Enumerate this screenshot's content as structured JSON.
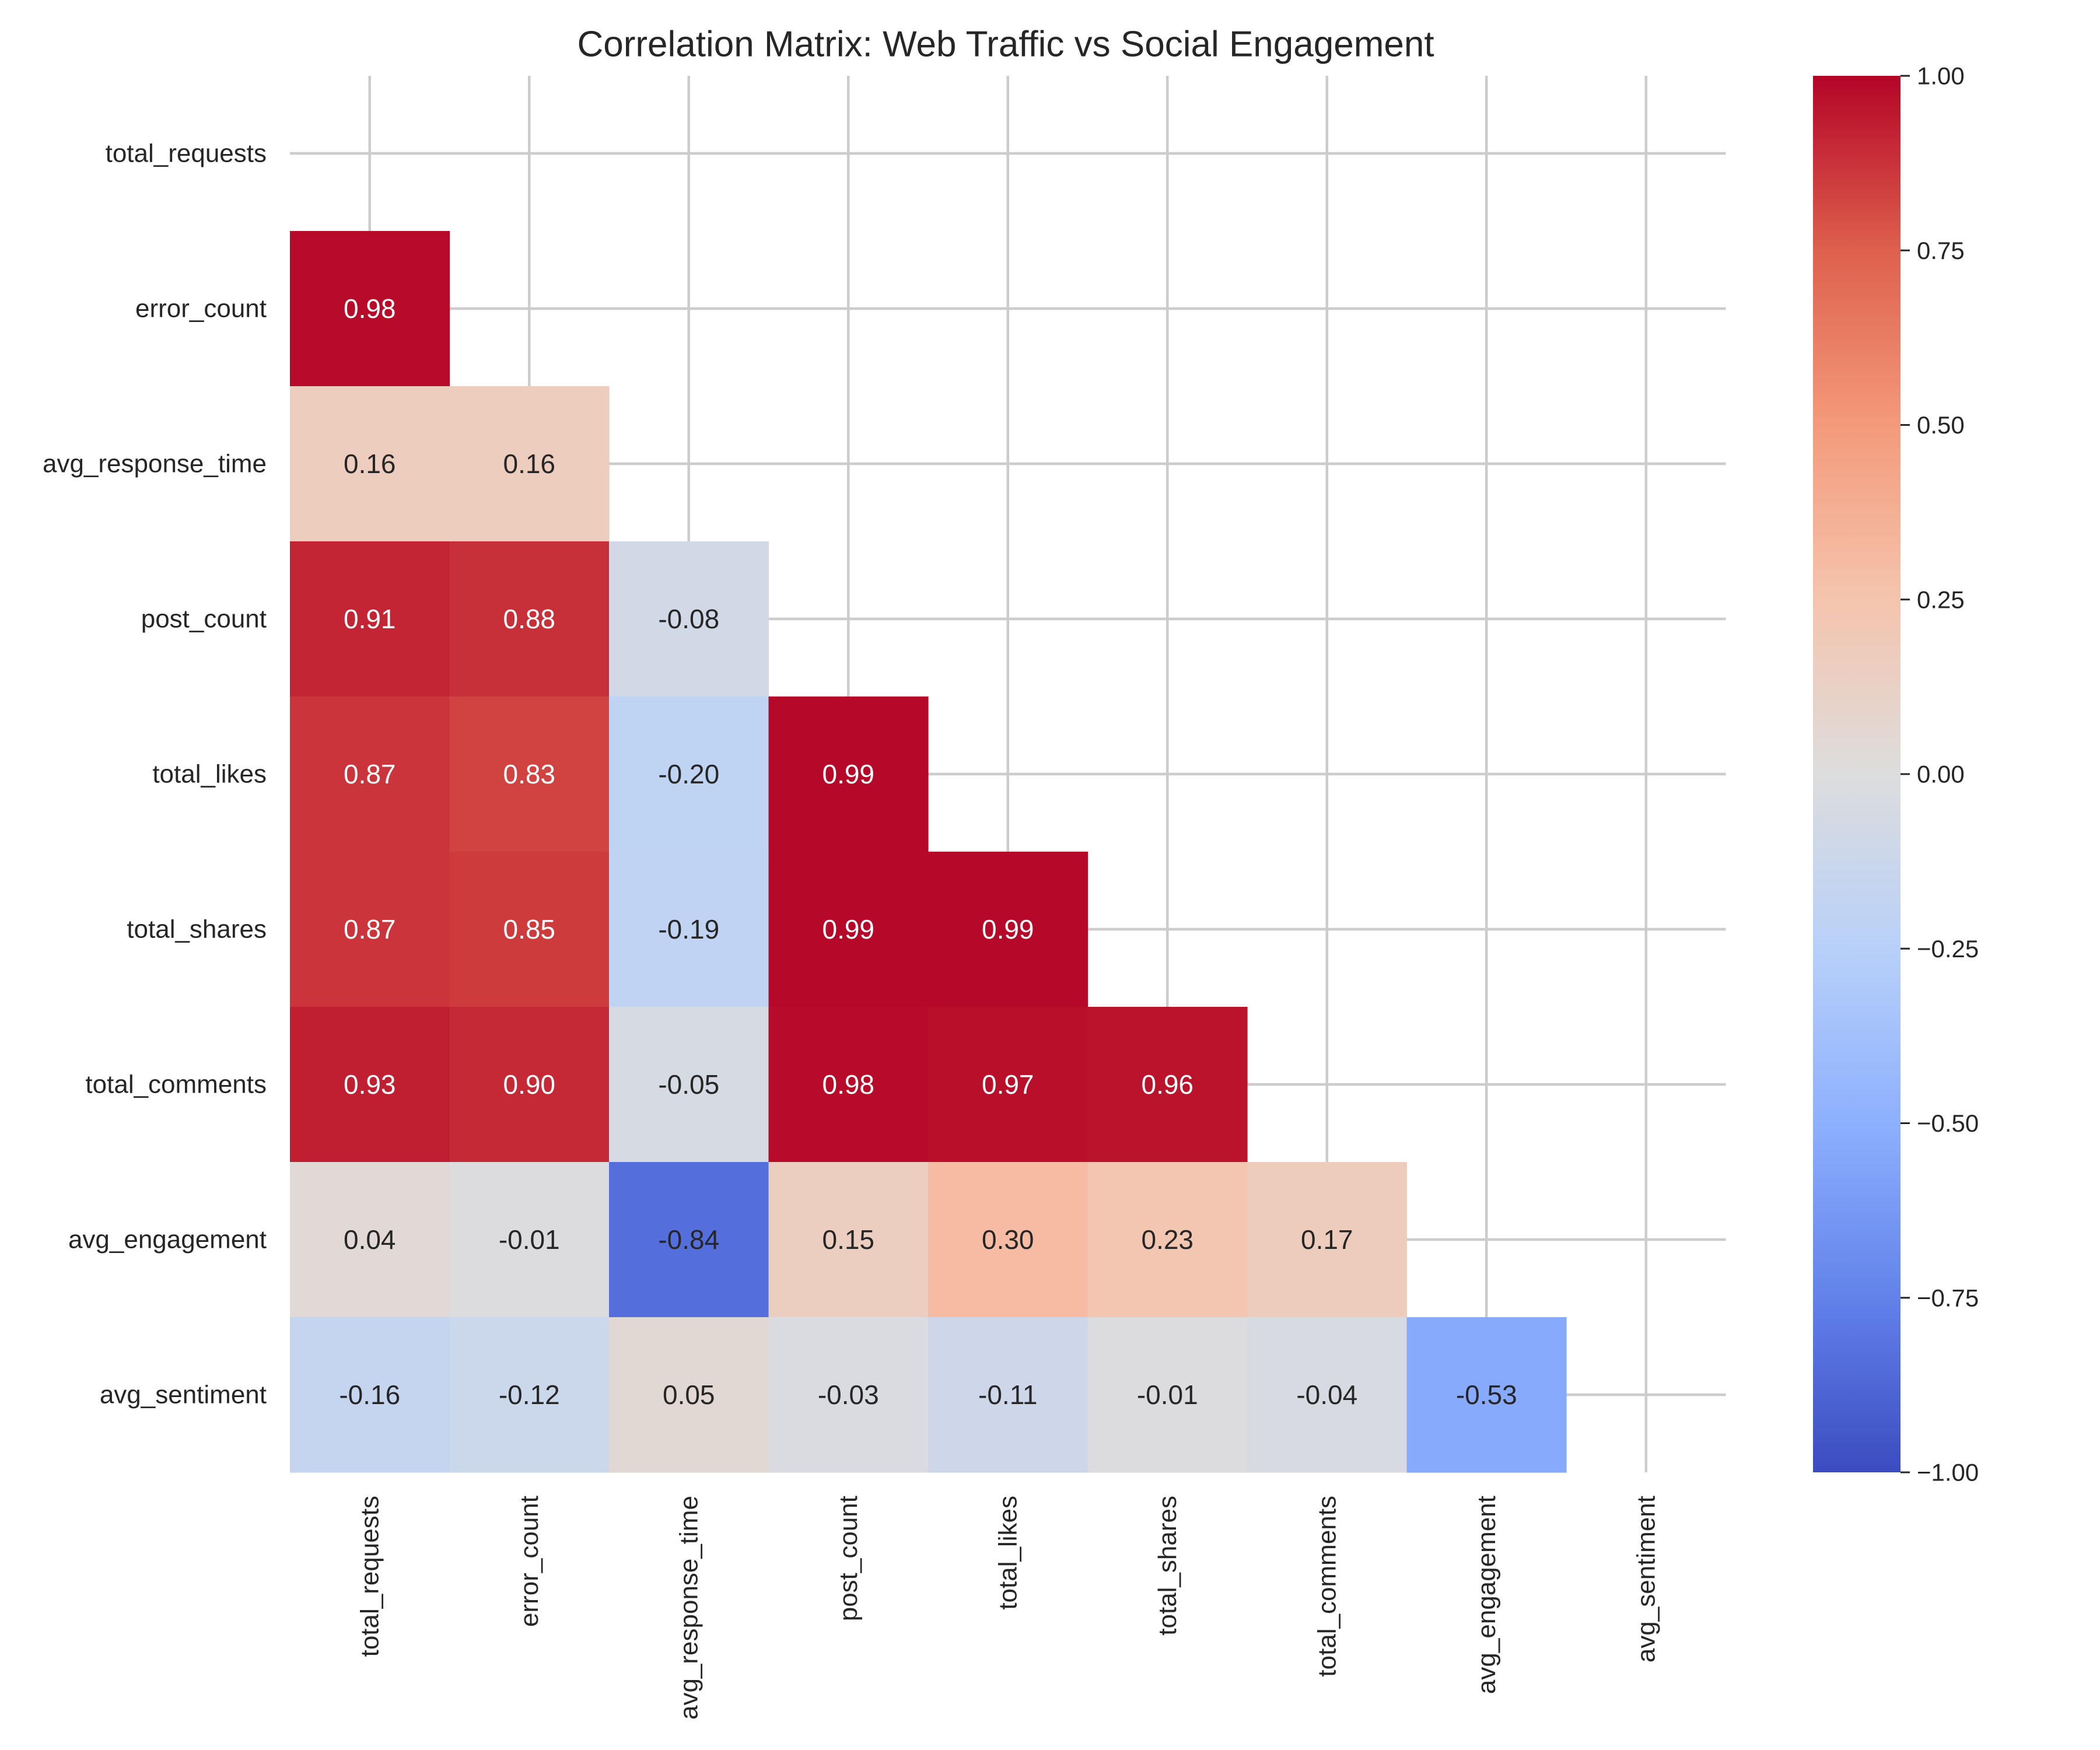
{
  "chart_data": {
    "type": "heatmap",
    "title": "Correlation Matrix: Web Traffic vs Social Engagement",
    "variables": [
      "total_requests",
      "error_count",
      "avg_response_time",
      "post_count",
      "total_likes",
      "total_shares",
      "total_comments",
      "avg_engagement",
      "avg_sentiment"
    ],
    "mask": "upper-triangle-and-diagonal",
    "values": [
      [
        null,
        null,
        null,
        null,
        null,
        null,
        null,
        null,
        null
      ],
      [
        0.98,
        null,
        null,
        null,
        null,
        null,
        null,
        null,
        null
      ],
      [
        0.16,
        0.16,
        null,
        null,
        null,
        null,
        null,
        null,
        null
      ],
      [
        0.91,
        0.88,
        -0.08,
        null,
        null,
        null,
        null,
        null,
        null
      ],
      [
        0.87,
        0.83,
        -0.2,
        0.99,
        null,
        null,
        null,
        null,
        null
      ],
      [
        0.87,
        0.85,
        -0.19,
        0.99,
        0.99,
        null,
        null,
        null,
        null
      ],
      [
        0.93,
        0.9,
        -0.05,
        0.98,
        0.97,
        0.96,
        null,
        null,
        null
      ],
      [
        0.04,
        -0.01,
        -0.84,
        0.15,
        0.3,
        0.23,
        0.17,
        null,
        null
      ],
      [
        -0.16,
        -0.12,
        0.05,
        -0.03,
        -0.11,
        -0.01,
        -0.04,
        -0.53,
        null
      ]
    ],
    "annotation_format": "2 decimals",
    "colormap": "coolwarm",
    "vmin": -1.0,
    "vmax": 1.0,
    "colorbar": {
      "ticks": [
        1.0,
        0.75,
        0.5,
        0.25,
        0.0,
        -0.25,
        -0.5,
        -0.75,
        -1.0
      ],
      "tick_labels": [
        "1.00",
        "0.75",
        "0.50",
        "0.25",
        "0.00",
        "−0.25",
        "−0.50",
        "−0.75",
        "−1.00"
      ]
    },
    "grid": true,
    "grid_color": "#cccccc",
    "xlabel": "",
    "ylabel": ""
  }
}
